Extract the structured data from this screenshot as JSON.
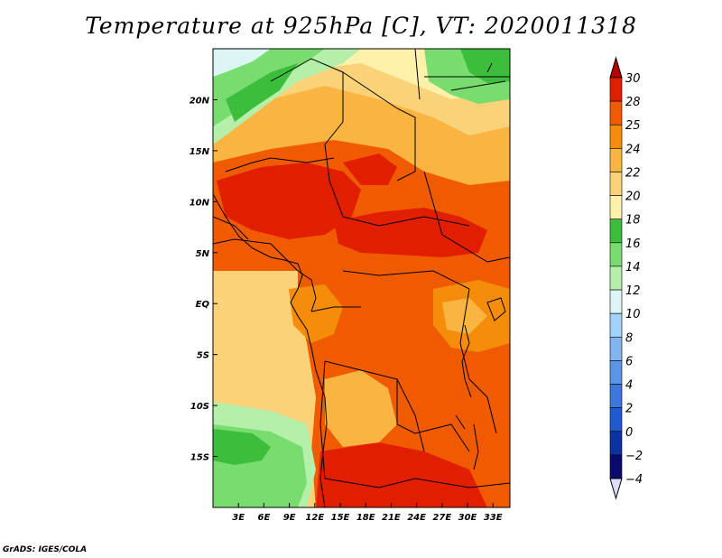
{
  "title": "Temperature at 925hPa [C], VT: 2020011318",
  "credit": "GrADS: IGES/COLA",
  "map": {
    "lon_range": [
      0,
      35
    ],
    "lat_range": [
      -20,
      25
    ],
    "lon_ticks": [
      {
        "value": 3,
        "label": "3E"
      },
      {
        "value": 6,
        "label": "6E"
      },
      {
        "value": 9,
        "label": "9E"
      },
      {
        "value": 12,
        "label": "12E"
      },
      {
        "value": 15,
        "label": "15E"
      },
      {
        "value": 18,
        "label": "18E"
      },
      {
        "value": 21,
        "label": "21E"
      },
      {
        "value": 24,
        "label": "24E"
      },
      {
        "value": 27,
        "label": "27E"
      },
      {
        "value": 30,
        "label": "30E"
      },
      {
        "value": 33,
        "label": "33E"
      }
    ],
    "lat_ticks": [
      {
        "value": 20,
        "label": "20N"
      },
      {
        "value": 15,
        "label": "15N"
      },
      {
        "value": 10,
        "label": "10N"
      },
      {
        "value": 5,
        "label": "5N"
      },
      {
        "value": 0,
        "label": "EQ"
      },
      {
        "value": -5,
        "label": "5S"
      },
      {
        "value": -10,
        "label": "10S"
      },
      {
        "value": -15,
        "label": "15S"
      }
    ]
  },
  "colorbar": {
    "levels": [
      {
        "label": "30",
        "color": "#c80000"
      },
      {
        "label": "28",
        "color": "#e11e00"
      },
      {
        "label": "25",
        "color": "#f05a00"
      },
      {
        "label": "24",
        "color": "#f58c0a"
      },
      {
        "label": "22",
        "color": "#fab441"
      },
      {
        "label": "20",
        "color": "#fad278"
      },
      {
        "label": "18",
        "color": "#fff0aa"
      },
      {
        "label": "16",
        "color": "#3cbe3c"
      },
      {
        "label": "14",
        "color": "#78dc6e"
      },
      {
        "label": "12",
        "color": "#b4f0aa"
      },
      {
        "label": "10",
        "color": "#dcf5f5"
      },
      {
        "label": "8",
        "color": "#a0d2fa"
      },
      {
        "label": "6",
        "color": "#82b4f0"
      },
      {
        "label": "4",
        "color": "#5a96e6"
      },
      {
        "label": "2",
        "color": "#3c78dc"
      },
      {
        "label": "0",
        "color": "#1e5ad2"
      },
      {
        "label": "−2",
        "color": "#0a32a0"
      },
      {
        "label": "−4",
        "color": "#0a0a6e"
      }
    ],
    "top_arrow_color": "#b40000",
    "bottom_arrow_color": "#dcdcf5"
  },
  "fields": {
    "ocean_color": "#fad278",
    "regions": [
      {
        "name": "sahara-north",
        "color": "#fab441"
      },
      {
        "name": "sahel-hot",
        "color": "#f05a00"
      },
      {
        "name": "nigeria-core",
        "color": "#e11e00"
      },
      {
        "name": "car-core",
        "color": "#e11e00"
      },
      {
        "name": "congo-basin",
        "color": "#f05a00"
      },
      {
        "name": "angola-south",
        "color": "#e11e00"
      },
      {
        "name": "east-highlands",
        "color": "#f58c0a"
      },
      {
        "name": "sw-green",
        "color": "#78dc6e"
      },
      {
        "name": "nw-green",
        "color": "#78dc6e"
      },
      {
        "name": "ne-green",
        "color": "#3cbe3c"
      }
    ]
  }
}
